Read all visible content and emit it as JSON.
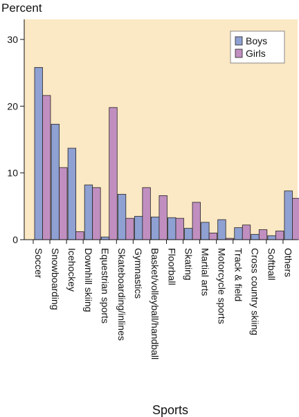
{
  "chart_data": {
    "type": "bar",
    "ylabel": "Percent",
    "xlabel": "Sports",
    "ylim": [
      0,
      33
    ],
    "yticks": [
      0,
      10,
      20,
      30
    ],
    "grid": false,
    "legend_position": "top-right",
    "background_color": "#fbe8c4",
    "categories": [
      "Soccer",
      "Snowboarding",
      "Icehockey",
      "Downhill skiing",
      "Equestrian sports",
      "Skateboarding/inlines",
      "Gymnastics",
      "Basket/volleyball/handball",
      "Floorball",
      "Skating",
      "Martial arts",
      "Motorcycle sports",
      "Track & field",
      "Cross country skiing",
      "Softball",
      "Others"
    ],
    "series": [
      {
        "name": "Boys",
        "color": "#8fa0d2",
        "values": [
          25.8,
          17.3,
          13.7,
          8.2,
          0.4,
          6.8,
          3.5,
          3.4,
          3.3,
          1.7,
          2.6,
          3.0,
          1.8,
          0.8,
          0.6,
          7.3
        ]
      },
      {
        "name": "Girls",
        "color": "#c08fc0",
        "values": [
          21.6,
          10.8,
          1.2,
          7.8,
          19.8,
          3.2,
          7.8,
          6.6,
          3.2,
          5.6,
          1.0,
          0.2,
          2.2,
          1.5,
          1.3,
          6.2
        ]
      }
    ]
  }
}
